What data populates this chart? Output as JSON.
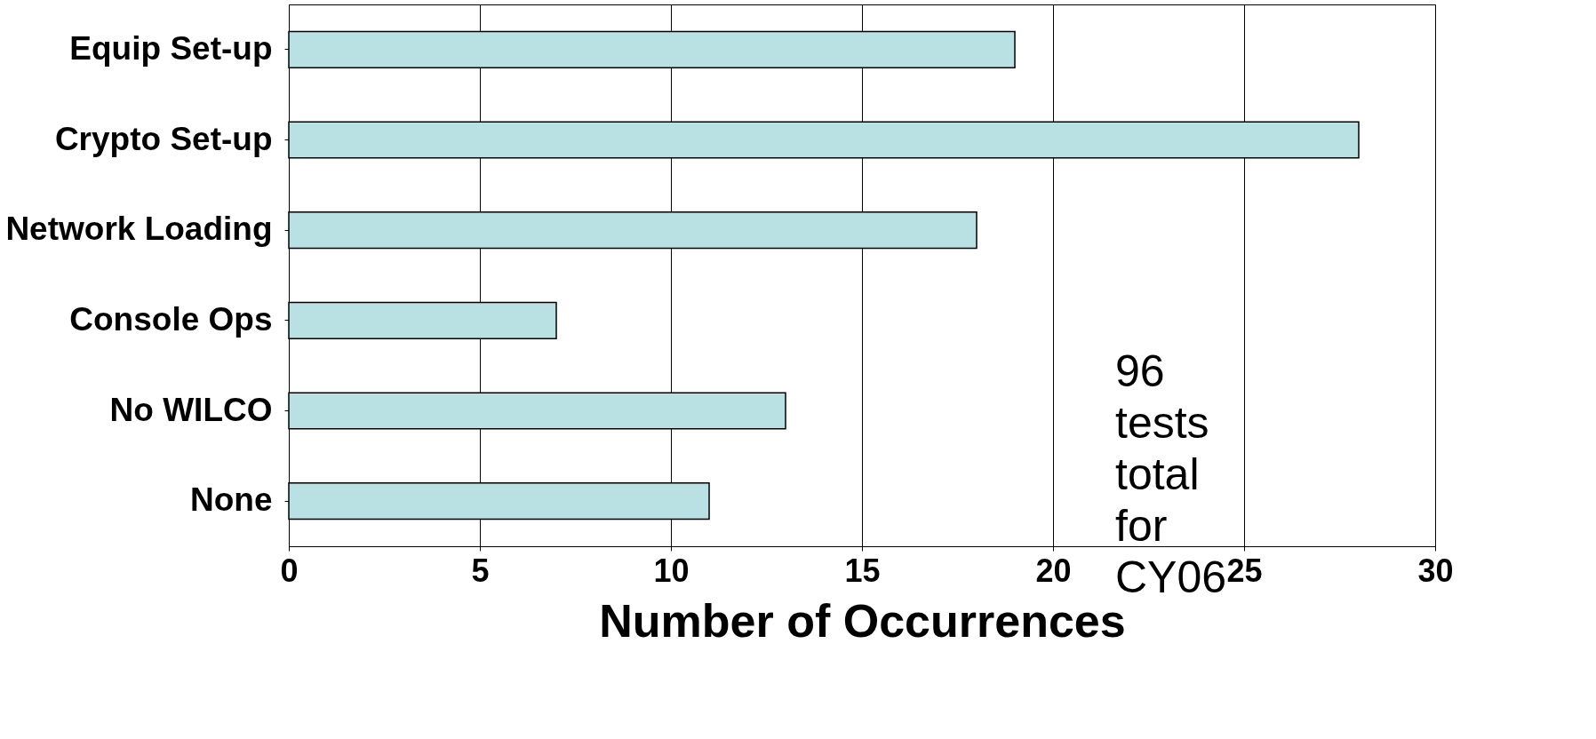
{
  "chart_data": {
    "type": "bar",
    "orientation": "horizontal",
    "categories": [
      "Equip Set-up",
      "Crypto Set-up",
      "Network Loading",
      "Console Ops",
      "No WILCO",
      "None"
    ],
    "values": [
      19,
      28,
      18,
      7,
      13,
      11
    ],
    "color": "#b9e0e3",
    "xlabel": "Number of Occurrences",
    "xlim": [
      0,
      30
    ],
    "xticks": [
      0,
      5,
      10,
      15,
      20,
      25,
      30
    ],
    "grid": "x",
    "annotations": [
      "96 tests total for CY06"
    ]
  }
}
